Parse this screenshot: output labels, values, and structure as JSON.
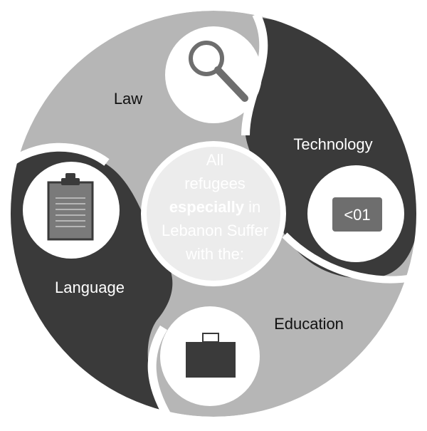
{
  "center": {
    "line1": "All",
    "line2": "refugees",
    "line3_bold": "especially",
    "line3_rest": " in",
    "line4": "Lebanon Suffer",
    "line5": "with the:"
  },
  "segments": {
    "law": {
      "label": "Law",
      "icon": "magnifying-glass-icon"
    },
    "technology": {
      "label": "Technology",
      "icon": "binary-screen-icon",
      "icon_text": "<01"
    },
    "education": {
      "label": "Education",
      "icon": "briefcase-icon"
    },
    "language": {
      "label": "Language",
      "icon": "clipboard-icon"
    }
  },
  "colors": {
    "light": "#b6b6b6",
    "dark": "#3a3a3a",
    "icon_gray": "#6e6e6e",
    "center_text": "#ffffff",
    "center_circle": "#ececec"
  }
}
